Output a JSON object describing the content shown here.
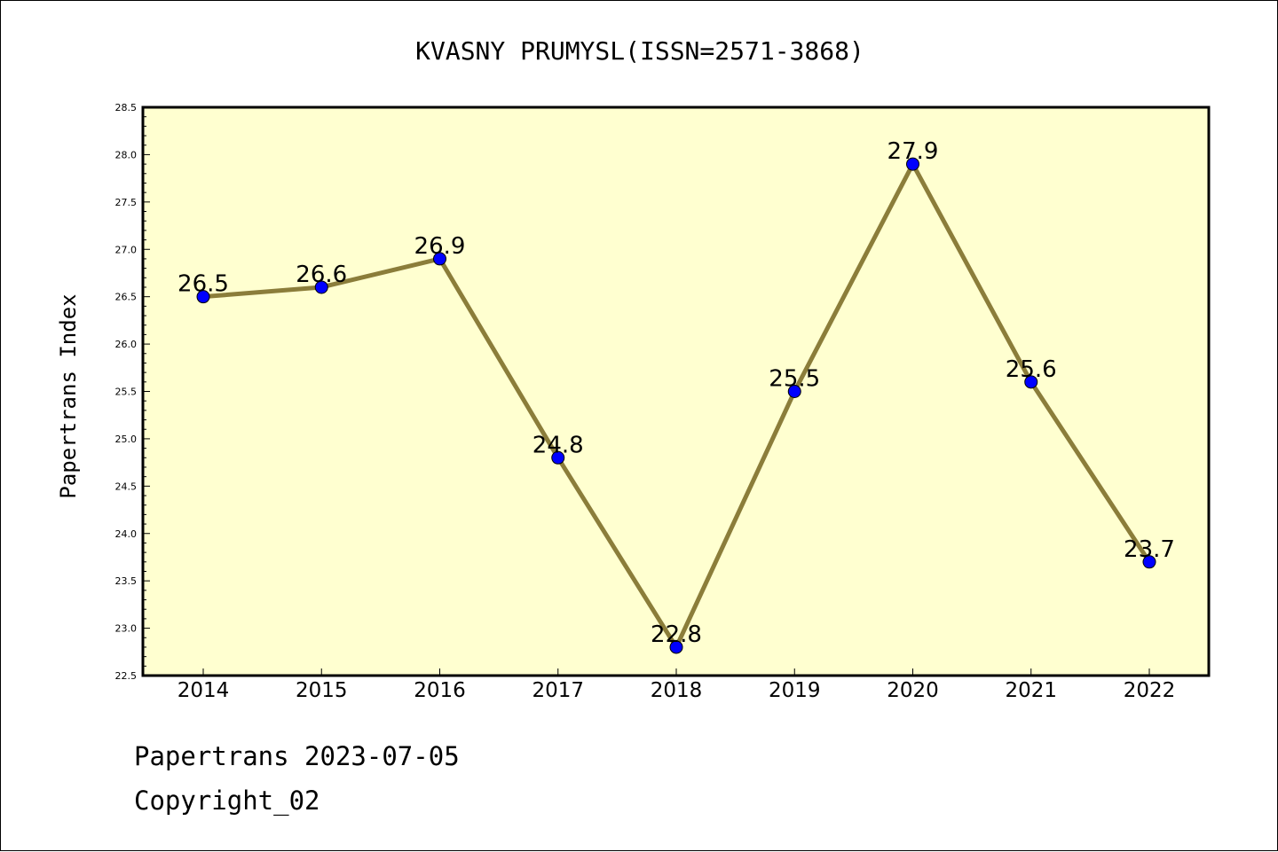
{
  "chart_data": {
    "type": "line",
    "title": "KVASNY PRUMYSL(ISSN=2571-3868)",
    "ylabel": "Papertrans Index",
    "xlabel": "",
    "categories": [
      "2014",
      "2015",
      "2016",
      "2017",
      "2018",
      "2019",
      "2020",
      "2021",
      "2022"
    ],
    "values": [
      26.5,
      26.6,
      26.9,
      24.8,
      22.8,
      25.5,
      27.9,
      25.6,
      23.7
    ],
    "data_labels": [
      "26.5",
      "26.6",
      "26.9",
      "24.8",
      "22.8",
      "25.5",
      "27.9",
      "25.6",
      "23.7"
    ],
    "ylim": [
      22.5,
      28.5
    ],
    "yticks": [
      "22.5",
      "23.0",
      "23.5",
      "24.0",
      "24.5",
      "25.0",
      "25.5",
      "26.0",
      "26.5",
      "27.0",
      "27.5",
      "28.0",
      "28.5"
    ],
    "grid": false,
    "legend": "none",
    "colors": {
      "plot_background": "#ffffd0",
      "line": "#8b7d3a",
      "marker": "#0000ff"
    }
  },
  "footer": {
    "line1": "Papertrans 2023-07-05",
    "line2": "Copyright_02"
  }
}
